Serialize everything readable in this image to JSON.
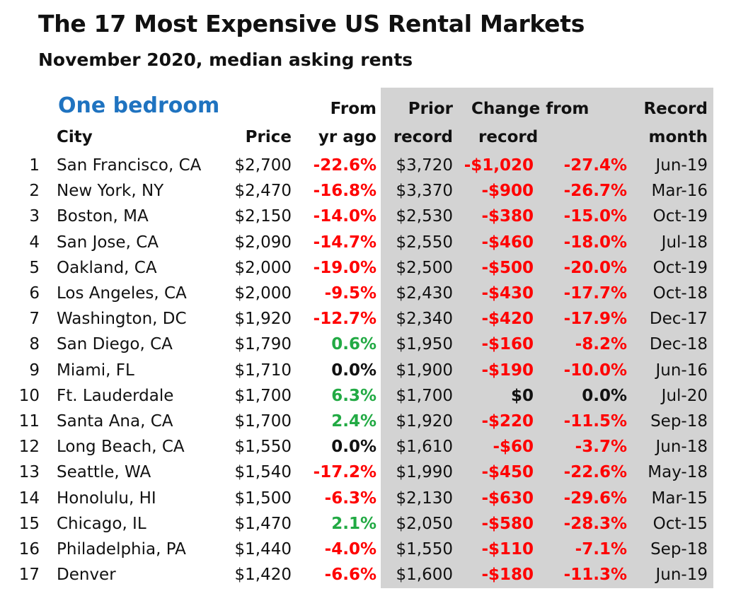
{
  "title": "The 17 Most Expensive US Rental Markets",
  "subtitle": "November 2020, median asking rents",
  "section": "One bedroom",
  "colors": {
    "negative": "#ff0000",
    "positive": "#22aa44",
    "neutral": "#111111",
    "section": "#1f73c0",
    "shade": "#d3d3d3"
  },
  "headers": {
    "row1": {
      "from": "From",
      "prior": "Prior",
      "change_from": "Change from",
      "record": "Record"
    },
    "row2": {
      "city": "City",
      "price": "Price",
      "yr_ago": "yr ago",
      "record": "record",
      "record2": "record",
      "month": "month"
    }
  },
  "rows": [
    {
      "rank": "1",
      "city": "San Francisco, CA",
      "price": "$2,700",
      "yoy": "-22.6%",
      "yoy_sign": "neg",
      "prior": "$3,720",
      "chg": "-$1,020",
      "chg_sign": "neg",
      "chg_pct": "-27.4%",
      "pct_sign": "neg",
      "month": "Jun-19"
    },
    {
      "rank": "2",
      "city": "New York, NY",
      "price": "$2,470",
      "yoy": "-16.8%",
      "yoy_sign": "neg",
      "prior": "$3,370",
      "chg": "-$900",
      "chg_sign": "neg",
      "chg_pct": "-26.7%",
      "pct_sign": "neg",
      "month": "Mar-16"
    },
    {
      "rank": "3",
      "city": "Boston, MA",
      "price": "$2,150",
      "yoy": "-14.0%",
      "yoy_sign": "neg",
      "prior": "$2,530",
      "chg": "-$380",
      "chg_sign": "neg",
      "chg_pct": "-15.0%",
      "pct_sign": "neg",
      "month": "Oct-19"
    },
    {
      "rank": "4",
      "city": "San Jose, CA",
      "price": "$2,090",
      "yoy": "-14.7%",
      "yoy_sign": "neg",
      "prior": "$2,550",
      "chg": "-$460",
      "chg_sign": "neg",
      "chg_pct": "-18.0%",
      "pct_sign": "neg",
      "month": "Jul-18"
    },
    {
      "rank": "5",
      "city": "Oakland, CA",
      "price": "$2,000",
      "yoy": "-19.0%",
      "yoy_sign": "neg",
      "prior": "$2,500",
      "chg": "-$500",
      "chg_sign": "neg",
      "chg_pct": "-20.0%",
      "pct_sign": "neg",
      "month": "Oct-19"
    },
    {
      "rank": "6",
      "city": "Los Angeles, CA",
      "price": "$2,000",
      "yoy": "-9.5%",
      "yoy_sign": "neg",
      "prior": "$2,430",
      "chg": "-$430",
      "chg_sign": "neg",
      "chg_pct": "-17.7%",
      "pct_sign": "neg",
      "month": "Oct-18"
    },
    {
      "rank": "7",
      "city": "Washington, DC",
      "price": "$1,920",
      "yoy": "-12.7%",
      "yoy_sign": "neg",
      "prior": "$2,340",
      "chg": "-$420",
      "chg_sign": "neg",
      "chg_pct": "-17.9%",
      "pct_sign": "neg",
      "month": "Dec-17"
    },
    {
      "rank": "8",
      "city": "San Diego, CA",
      "price": "$1,790",
      "yoy": "0.6%",
      "yoy_sign": "pos",
      "prior": "$1,950",
      "chg": "-$160",
      "chg_sign": "neg",
      "chg_pct": "-8.2%",
      "pct_sign": "neg",
      "month": "Dec-18"
    },
    {
      "rank": "9",
      "city": "Miami, FL",
      "price": "$1,710",
      "yoy": "0.0%",
      "yoy_sign": "zero",
      "prior": "$1,900",
      "chg": "-$190",
      "chg_sign": "neg",
      "chg_pct": "-10.0%",
      "pct_sign": "neg",
      "month": "Jun-16"
    },
    {
      "rank": "10",
      "city": "Ft. Lauderdale",
      "price": "$1,700",
      "yoy": "6.3%",
      "yoy_sign": "pos",
      "prior": "$1,700",
      "chg": "$0",
      "chg_sign": "zero",
      "chg_pct": "0.0%",
      "pct_sign": "zero",
      "month": "Jul-20"
    },
    {
      "rank": "11",
      "city": "Santa Ana, CA",
      "price": "$1,700",
      "yoy": "2.4%",
      "yoy_sign": "pos",
      "prior": "$1,920",
      "chg": "-$220",
      "chg_sign": "neg",
      "chg_pct": "-11.5%",
      "pct_sign": "neg",
      "month": "Sep-18"
    },
    {
      "rank": "12",
      "city": "Long Beach, CA",
      "price": "$1,550",
      "yoy": "0.0%",
      "yoy_sign": "zero",
      "prior": "$1,610",
      "chg": "-$60",
      "chg_sign": "neg",
      "chg_pct": "-3.7%",
      "pct_sign": "neg",
      "month": "Jun-18"
    },
    {
      "rank": "13",
      "city": "Seattle, WA",
      "price": "$1,540",
      "yoy": "-17.2%",
      "yoy_sign": "neg",
      "prior": "$1,990",
      "chg": "-$450",
      "chg_sign": "neg",
      "chg_pct": "-22.6%",
      "pct_sign": "neg",
      "month": "May-18"
    },
    {
      "rank": "14",
      "city": "Honolulu, HI",
      "price": "$1,500",
      "yoy": "-6.3%",
      "yoy_sign": "neg",
      "prior": "$2,130",
      "chg": "-$630",
      "chg_sign": "neg",
      "chg_pct": "-29.6%",
      "pct_sign": "neg",
      "month": "Mar-15"
    },
    {
      "rank": "15",
      "city": "Chicago, IL",
      "price": "$1,470",
      "yoy": "2.1%",
      "yoy_sign": "pos",
      "prior": "$2,050",
      "chg": "-$580",
      "chg_sign": "neg",
      "chg_pct": "-28.3%",
      "pct_sign": "neg",
      "month": "Oct-15"
    },
    {
      "rank": "16",
      "city": "Philadelphia, PA",
      "price": "$1,440",
      "yoy": "-4.0%",
      "yoy_sign": "neg",
      "prior": "$1,550",
      "chg": "-$110",
      "chg_sign": "neg",
      "chg_pct": "-7.1%",
      "pct_sign": "neg",
      "month": "Sep-18"
    },
    {
      "rank": "17",
      "city": "Denver",
      "price": "$1,420",
      "yoy": "-6.6%",
      "yoy_sign": "neg",
      "prior": "$1,600",
      "chg": "-$180",
      "chg_sign": "neg",
      "chg_pct": "-11.3%",
      "pct_sign": "neg",
      "month": "Jun-19"
    }
  ]
}
